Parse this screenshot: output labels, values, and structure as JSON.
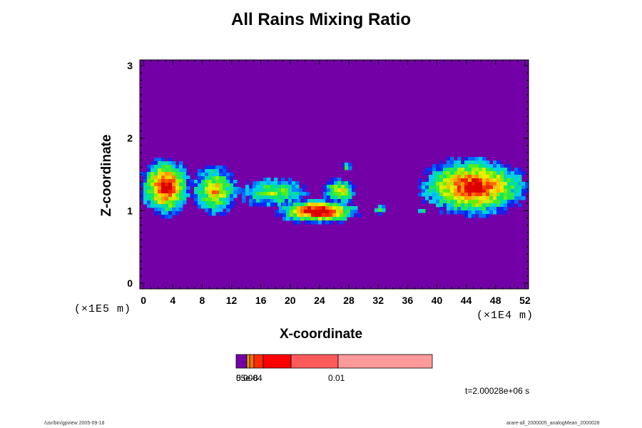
{
  "chart_data": {
    "type": "heatmap",
    "title": "All Rains Mixing Ratio",
    "xlabel": "X-coordinate",
    "ylabel": "Z-coordinate",
    "x_unit": "(×1E4 m)",
    "y_unit": "(×1E5 m)",
    "xlim": [
      -0.5,
      52.5
    ],
    "ylim": [
      -0.08,
      3.08
    ],
    "x_ticks": [
      0,
      4,
      8,
      12,
      16,
      20,
      24,
      28,
      32,
      36,
      40,
      44,
      48,
      52
    ],
    "y_ticks": [
      0,
      1,
      2,
      3
    ],
    "background_color": "#7300a6",
    "regions": [
      {
        "x": [
          -0.5,
          6.5
        ],
        "z": [
          0.92,
          1.73
        ],
        "peak": 0.9
      },
      {
        "x": [
          6.5,
          13
        ],
        "z": [
          0.94,
          1.62
        ],
        "peak": 0.6
      },
      {
        "x": [
          13,
          22.5
        ],
        "z": [
          1.05,
          1.45
        ],
        "peak": 0.45
      },
      {
        "x": [
          18,
          29.5
        ],
        "z": [
          0.82,
          1.16
        ],
        "peak": 1.0
      },
      {
        "x": [
          24.5,
          29
        ],
        "z": [
          1.1,
          1.45
        ],
        "peak": 0.55
      },
      {
        "x": [
          27,
          28.5
        ],
        "z": [
          1.55,
          1.66
        ],
        "peak": 0.3
      },
      {
        "x": [
          31.5,
          33
        ],
        "z": [
          0.96,
          1.08
        ],
        "peak": 0.35
      },
      {
        "x": [
          37.5,
          38.5
        ],
        "z": [
          0.96,
          1.02
        ],
        "peak": 0.3
      },
      {
        "x": [
          37.5,
          52.5
        ],
        "z": [
          0.92,
          1.74
        ],
        "peak": 0.85
      }
    ],
    "colorbar": {
      "colors": [
        "#7300a6",
        "#e8a000",
        "#ff6a00",
        "#ff2a00",
        "#ff0000",
        "#ff5a5a",
        "#ff9a9a"
      ],
      "labels": [
        "55e-8",
        "0.0004",
        "0.01"
      ]
    },
    "time_label": "t=2.00028e+06 s"
  },
  "footer": {
    "left": "/usr/bin/gpview 2005-09-18",
    "right": "arare-all_2000005_analogMean_2000028"
  }
}
